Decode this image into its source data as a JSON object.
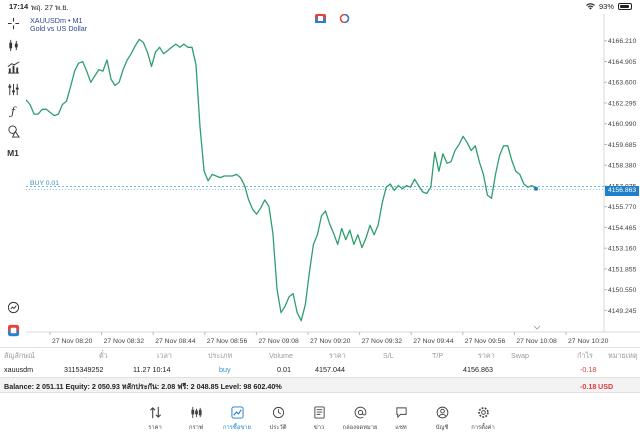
{
  "status_bar": {
    "time": "17:14",
    "date": "พฤ. 27 พ.ย.",
    "battery": "93%",
    "battery_level": 0.93
  },
  "left_toolbar": {
    "items": [
      "crosshair-icon",
      "candles-icon",
      "indicators-icon",
      "sliders-icon",
      "function-icon",
      "shapes-icon"
    ],
    "timeframe": "M1"
  },
  "chart": {
    "symbol_title": "XAUUSDm • M1",
    "symbol_desc": "Gold vs US Dollar",
    "buy_line_label": "BUY 0.01",
    "current_price": "4156.863",
    "colors": {
      "line": "#2f9e6e",
      "buy_line": "#4aa3d8",
      "price_tag": "#1f7fc9",
      "dot": "#1f7fc9"
    },
    "price_ticks": [
      "4166.210",
      "4164.905",
      "4163.600",
      "4162.295",
      "4160.990",
      "4159.685",
      "4158.380",
      "4157.075",
      "4155.770",
      "4154.465",
      "4153.160",
      "4151.855",
      "4150.550",
      "4149.245"
    ],
    "time_ticks": [
      "27 Nov 08:20",
      "27 Nov 08:32",
      "27 Nov 08:44",
      "27 Nov 08:56",
      "27 Nov 09:08",
      "27 Nov 09:20",
      "27 Nov 09:32",
      "27 Nov 09:44",
      "27 Nov 09:56",
      "27 Nov 10:08",
      "27 Nov 10:20"
    ]
  },
  "chart_data": {
    "type": "line",
    "xlabel": "",
    "ylabel": "",
    "ylim": [
      4148.0,
      4167.6
    ],
    "grid": false,
    "x_range": [
      "27 Nov 08:15",
      "27 Nov 10:24"
    ],
    "series": [
      {
        "values": [
          4162.5,
          4162.2,
          4161.6,
          4161.6,
          4161.9,
          4161.9,
          4161.7,
          4161.5,
          4161.6,
          4162.2,
          4162.4,
          4163.3,
          4164.3,
          4164.8,
          4164.9,
          4164.3,
          4163.6,
          4164.0,
          4164.4,
          4164.3,
          4165.0,
          4163.8,
          4163.4,
          4163.6,
          4164.4,
          4165.0,
          4165.4,
          4165.9,
          4166.3,
          4166.1,
          4165.5,
          4164.6,
          4165.5,
          4165.8,
          4165.4,
          4165.6,
          4165.8,
          4166.0,
          4165.8,
          4166.0,
          4165.8,
          4165.8,
          4164.7,
          4160.8,
          4158.0,
          4157.4,
          4157.8,
          4157.7,
          4157.6,
          4157.7,
          4157.7,
          4157.7,
          4157.8,
          4157.6,
          4157.1,
          4156.2,
          4155.6,
          4155.3,
          4155.7,
          4156.2,
          4155.8,
          4154.1,
          4150.6,
          4149.1,
          4149.5,
          4150.1,
          4150.3,
          4149.1,
          4148.6,
          4149.6,
          4151.6,
          4153.4,
          4154.0,
          4155.2,
          4155.5,
          4154.7,
          4154.1,
          4153.4,
          4154.4,
          4153.7,
          4154.3,
          4153.4,
          4154.0,
          4153.2,
          4153.8,
          4154.6,
          4154.0,
          4154.6,
          4156.0,
          4157.0,
          4157.2,
          4156.8,
          4157.1,
          4156.9,
          4157.1,
          4157.0,
          4157.5,
          4157.1,
          4156.7,
          4156.6,
          4157.0,
          4159.2,
          4158.0,
          4159.1,
          4158.5,
          4158.6,
          4159.3,
          4159.7,
          4160.2,
          4159.8,
          4159.3,
          4159.6,
          4158.6,
          4157.8,
          4156.5,
          4156.3,
          4157.8,
          4159.0,
          4159.6,
          4159.6,
          4158.7,
          4158.0,
          4157.8,
          4157.2,
          4157.0,
          4157.1,
          4156.9
        ]
      }
    ]
  },
  "positions_table": {
    "headers": [
      "สัญลักษณ์",
      "ตั๋ว",
      "เวลา",
      "ประเภท",
      "Volume",
      "ราคา",
      "S/L",
      "T/P",
      "ราคา",
      "Swap",
      "กำไร",
      "หมายเหตุ"
    ],
    "rows": [
      {
        "symbol": "xauusdm",
        "ticket": "3115349252",
        "time": "11.27 10:14",
        "type": "buy",
        "volume": "0.01",
        "open_price": "4157.044",
        "sl": "",
        "tp": "",
        "current_price": "4156.863",
        "swap": "",
        "profit": "-0.18",
        "comment": ""
      }
    ]
  },
  "balance_bar": {
    "text": "Balance: 2 051.11 Equity: 2 050.93 หลักประกัน: 2.08 ฟรี: 2 048.85 Level: 98 602.40%",
    "profit": "-0.18",
    "currency": "USD"
  },
  "bottom_nav": {
    "items": [
      {
        "label": "ราคา",
        "icon": "quotes-icon"
      },
      {
        "label": "กราฟ",
        "icon": "chart-icon"
      },
      {
        "label": "การซื้อขาย",
        "icon": "trade-icon",
        "active": true
      },
      {
        "label": "ประวัติ",
        "icon": "history-icon"
      },
      {
        "label": "ข่าว",
        "icon": "news-icon"
      },
      {
        "label": "กล่องจดหมาย",
        "icon": "mailbox-icon"
      },
      {
        "label": "แชท",
        "icon": "chat-icon"
      },
      {
        "label": "บัญชี",
        "icon": "account-icon"
      },
      {
        "label": "การตั้งค่า",
        "icon": "settings-icon"
      }
    ]
  }
}
